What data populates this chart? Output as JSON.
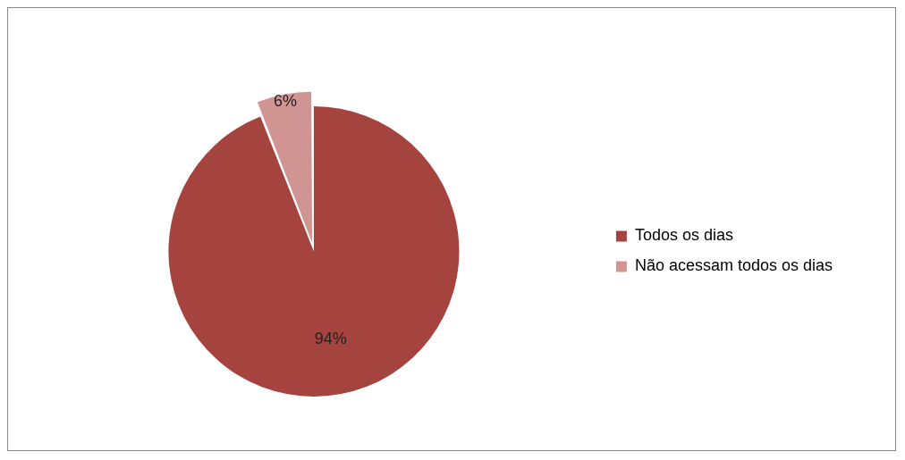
{
  "chart_data": {
    "type": "pie",
    "categories": [
      "Todos os dias",
      "Não acessam todos os dias"
    ],
    "values": [
      94,
      6
    ],
    "value_labels": [
      "94%",
      "6%"
    ],
    "colors": [
      "#a5433f",
      "#d09593"
    ],
    "legend": "right"
  }
}
